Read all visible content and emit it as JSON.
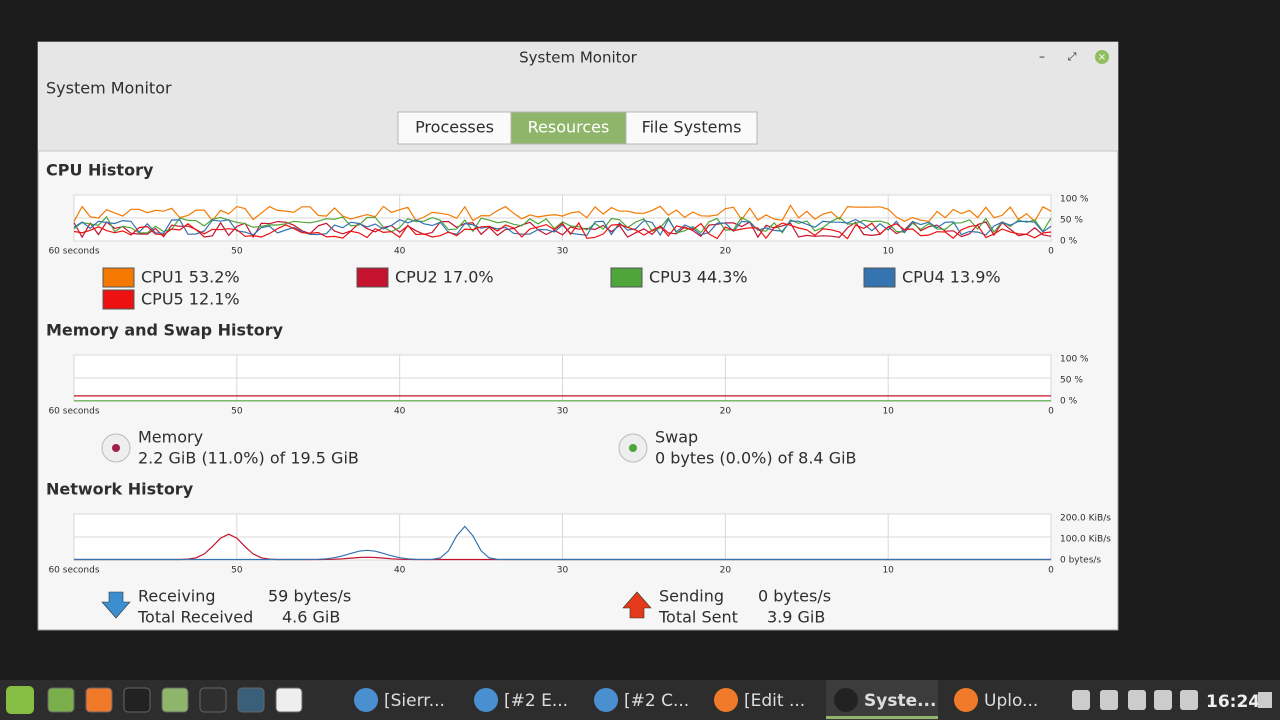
{
  "window": {
    "title": "System Monitor",
    "header": "System Monitor"
  },
  "tabs": [
    "Processes",
    "Resources",
    "File Systems"
  ],
  "cpu": {
    "title": "CPU History",
    "x_labels": [
      "60 seconds",
      "50",
      "40",
      "30",
      "20",
      "10",
      "0"
    ],
    "y_labels": [
      "100 %",
      "50 %",
      "0 %"
    ],
    "legend": [
      {
        "label": "CPU1 53.2%",
        "color": "#f57900"
      },
      {
        "label": "CPU2 17.0%",
        "color": "#c4122f"
      },
      {
        "label": "CPU3 44.3%",
        "color": "#4ea53a"
      },
      {
        "label": "CPU4 13.9%",
        "color": "#3474b0"
      },
      {
        "label": "CPU5 12.1%",
        "color": "#ee1111"
      }
    ]
  },
  "memory": {
    "title": "Memory and Swap History",
    "x_labels": [
      "60 seconds",
      "50",
      "40",
      "30",
      "20",
      "10",
      "0"
    ],
    "y_labels": [
      "100 %",
      "50 %",
      "0 %"
    ],
    "memory": {
      "name": "Memory",
      "detail": "2.2 GiB (11.0%) of 19.5 GiB"
    },
    "swap": {
      "name": "Swap",
      "detail": "0 bytes (0.0%) of 8.4 GiB"
    }
  },
  "network": {
    "title": "Network History",
    "x_labels": [
      "60 seconds",
      "50",
      "40",
      "30",
      "20",
      "10",
      "0"
    ],
    "y_labels": [
      "200.0 KiB/s",
      "100.0 KiB/s",
      "0 bytes/s"
    ],
    "receiving": {
      "label": "Receiving",
      "rate": "59 bytes/s",
      "total_label": "Total Received",
      "total": "4.6 GiB"
    },
    "sending": {
      "label": "Sending",
      "rate": "0 bytes/s",
      "total_label": "Total Sent",
      "total": "3.9 GiB"
    }
  },
  "taskbar": {
    "windows": [
      "[Sierr...",
      "[#2 E...",
      "[#2 C...",
      "[Edit ...",
      "Syste...",
      "Uplo..."
    ],
    "clock": "16:24"
  }
}
